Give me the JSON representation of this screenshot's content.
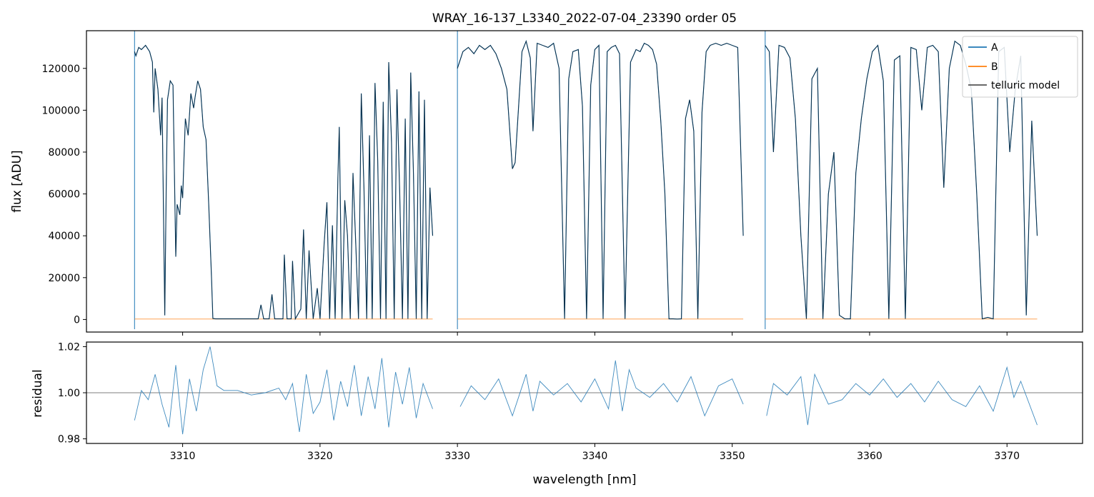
{
  "chart_data": [
    {
      "type": "line",
      "panel": "main",
      "title": "WRAY_16-137_L3340_2022-07-04_23390  order 05",
      "xlabel": "",
      "ylabel": "flux [ADU]",
      "xlim": [
        3303.0,
        3375.5
      ],
      "ylim": [
        -6000,
        138000
      ],
      "yticks": [
        0,
        20000,
        40000,
        60000,
        80000,
        100000,
        120000
      ],
      "ytick_labels": [
        "0",
        "20000",
        "40000",
        "60000",
        "80000",
        "100000",
        "120000"
      ],
      "xticks": [
        3310,
        3320,
        3330,
        3340,
        3350,
        3360,
        3370
      ],
      "legend": {
        "placement": "top-right",
        "entries": [
          "A",
          "B",
          "telluric model"
        ]
      },
      "chip_edges": [
        3306.5,
        3330.0,
        3352.4
      ],
      "series": [
        {
          "name": "A",
          "color": "#1f77b4",
          "segments": [
            {
              "x": [
                3306.5,
                3306.6,
                3306.8,
                3307.0,
                3307.3,
                3307.6,
                3307.8,
                3307.9,
                3308.0,
                3308.2,
                3308.4,
                3308.5,
                3308.7,
                3308.8,
                3308.9,
                3309.1,
                3309.3,
                3309.5,
                3309.6,
                3309.8,
                3309.9,
                3310.0,
                3310.2,
                3310.4,
                3310.6,
                3310.8,
                3310.9,
                3311.1,
                3311.3,
                3311.5,
                3311.7,
                3311.9,
                3312.1,
                3312.2,
                3312.4,
                3312.6,
                3313.0,
                3313.5,
                3314.0,
                3314.5,
                3315.0,
                3315.5,
                3315.7,
                3315.9,
                3316.3,
                3316.5,
                3316.7,
                3317.0,
                3317.3,
                3317.4,
                3317.6,
                3317.9,
                3318.0,
                3318.2,
                3318.6,
                3318.8,
                3319.0,
                3319.2,
                3319.5,
                3319.8,
                3320.0,
                3320.3,
                3320.5,
                3320.7,
                3320.9,
                3321.1,
                3321.3,
                3321.4,
                3321.6,
                3321.8,
                3322.0,
                3322.2,
                3322.4,
                3322.6,
                3322.8,
                3323.0,
                3323.2,
                3323.4,
                3323.6,
                3323.8,
                3324.0,
                3324.2,
                3324.4,
                3324.6,
                3324.8,
                3325.0,
                3325.2,
                3325.4,
                3325.6,
                3325.8,
                3326.0,
                3326.2,
                3326.4,
                3326.6,
                3326.8,
                3327.0,
                3327.2,
                3327.4,
                3327.6,
                3327.8,
                3328.0,
                3328.2
              ],
              "y": [
                128000,
                126000,
                130000,
                129000,
                131000,
                128000,
                123000,
                99000,
                120000,
                110000,
                88000,
                106000,
                2000,
                60000,
                105000,
                114000,
                112000,
                30000,
                55000,
                50000,
                64000,
                58000,
                96000,
                88000,
                108000,
                101000,
                106000,
                114000,
                110000,
                92000,
                86000,
                55000,
                20000,
                500,
                300,
                300,
                300,
                300,
                300,
                300,
                300,
                300,
                7000,
                300,
                300,
                12000,
                300,
                300,
                300,
                31000,
                300,
                300,
                28000,
                300,
                5000,
                43000,
                300,
                33000,
                300,
                15000,
                300,
                36000,
                56000,
                300,
                45000,
                300,
                68000,
                92000,
                300,
                57000,
                40000,
                300,
                70000,
                36000,
                300,
                108000,
                62000,
                300,
                88000,
                300,
                113000,
                76000,
                300,
                104000,
                300,
                123000,
                85000,
                300,
                110000,
                60000,
                300,
                96000,
                300,
                118000,
                70000,
                300,
                109000,
                300,
                105000,
                300,
                63000,
                40000
              ]
            },
            {
              "x": [
                3330.0,
                3330.4,
                3330.8,
                3331.2,
                3331.6,
                3332.0,
                3332.4,
                3332.8,
                3333.2,
                3333.6,
                3334.0,
                3334.2,
                3334.4,
                3334.7,
                3335.0,
                3335.3,
                3335.5,
                3335.8,
                3336.2,
                3336.6,
                3337.0,
                3337.4,
                3337.8,
                3338.1,
                3338.4,
                3338.8,
                3339.1,
                3339.4,
                3339.7,
                3340.0,
                3340.3,
                3340.6,
                3340.9,
                3341.2,
                3341.5,
                3341.8,
                3342.2,
                3342.6,
                3343.0,
                3343.3,
                3343.6,
                3343.9,
                3344.2,
                3344.5,
                3344.8,
                3345.1,
                3345.4,
                3345.7,
                3346.0,
                3346.3,
                3346.6,
                3346.9,
                3347.2,
                3347.5,
                3347.8,
                3348.1,
                3348.4,
                3348.8,
                3349.2,
                3349.6,
                3350.0,
                3350.4,
                3350.8
              ],
              "y": [
                120000,
                128000,
                130000,
                127000,
                131000,
                129000,
                131000,
                127000,
                120000,
                110000,
                72000,
                75000,
                96000,
                128000,
                133000,
                125000,
                90000,
                132000,
                131000,
                130000,
                132000,
                120000,
                300,
                115000,
                128000,
                129000,
                102000,
                300,
                112000,
                129000,
                131000,
                300,
                128000,
                130000,
                131000,
                127000,
                300,
                123000,
                129000,
                128000,
                132000,
                131000,
                129000,
                122000,
                95000,
                60000,
                300,
                300,
                200,
                300,
                96000,
                105000,
                90000,
                300,
                99000,
                128000,
                131000,
                132000,
                131000,
                132000,
                131000,
                130000,
                40000
              ]
            },
            {
              "x": [
                3352.4,
                3352.7,
                3353.0,
                3353.4,
                3353.8,
                3354.2,
                3354.6,
                3355.0,
                3355.4,
                3355.8,
                3356.2,
                3356.6,
                3357.0,
                3357.4,
                3357.8,
                3358.2,
                3358.6,
                3359.0,
                3359.4,
                3359.8,
                3360.2,
                3360.6,
                3361.0,
                3361.4,
                3361.8,
                3362.2,
                3362.6,
                3363.0,
                3363.4,
                3363.8,
                3364.2,
                3364.6,
                3365.0,
                3365.4,
                3365.8,
                3366.2,
                3366.6,
                3367.0,
                3367.4,
                3367.8,
                3368.2,
                3368.6,
                3369.0,
                3369.4,
                3369.8,
                3370.2,
                3370.6,
                3371.0,
                3371.4,
                3371.8,
                3372.2
              ],
              "y": [
                131000,
                128000,
                80000,
                131000,
                130000,
                125000,
                96000,
                40000,
                300,
                115000,
                120000,
                300,
                60000,
                80000,
                2000,
                300,
                300,
                70000,
                96000,
                115000,
                128000,
                131000,
                114000,
                300,
                124000,
                126000,
                300,
                130000,
                129000,
                100000,
                130000,
                131000,
                128000,
                63000,
                120000,
                133000,
                131000,
                122000,
                110000,
                60000,
                300,
                1000,
                300,
                128000,
                130000,
                80000,
                110000,
                126000,
                2000,
                95000,
                40000
              ]
            }
          ]
        },
        {
          "name": "B",
          "color": "#ff7f0e",
          "segments": [
            {
              "x": [
                3306.5,
                3328.2
              ],
              "y": [
                200,
                200
              ]
            },
            {
              "x": [
                3330.0,
                3350.8
              ],
              "y": [
                200,
                200
              ]
            },
            {
              "x": [
                3352.4,
                3372.2
              ],
              "y": [
                200,
                200
              ]
            }
          ]
        },
        {
          "name": "telluric model",
          "color": "#000000",
          "same_as": "A"
        }
      ]
    },
    {
      "type": "line",
      "panel": "residual",
      "xlabel": "wavelength [nm]",
      "ylabel": "residual",
      "xlim": [
        3303.0,
        3375.5
      ],
      "ylim": [
        0.978,
        1.022
      ],
      "yticks": [
        0.98,
        1.0,
        1.02
      ],
      "ytick_labels": [
        "0.98",
        "1.00",
        "1.02"
      ],
      "xticks": [
        3310,
        3320,
        3330,
        3340,
        3350,
        3360,
        3370
      ],
      "xtick_labels": [
        "3310",
        "3320",
        "3330",
        "3340",
        "3350",
        "3360",
        "3370"
      ],
      "hline": 1.0,
      "series": [
        {
          "name": "residual",
          "color": "#1f77b4",
          "segments": [
            {
              "x": [
                3306.5,
                3307.0,
                3307.5,
                3308.0,
                3308.5,
                3309.0,
                3309.5,
                3310.0,
                3310.5,
                3311.0,
                3311.5,
                3312.0,
                3312.5,
                3313.0,
                3314.0,
                3315.0,
                3316.0,
                3317.0,
                3317.5,
                3318.0,
                3318.5,
                3319.0,
                3319.5,
                3320.0,
                3320.5,
                3321.0,
                3321.5,
                3322.0,
                3322.5,
                3323.0,
                3323.5,
                3324.0,
                3324.5,
                3325.0,
                3325.5,
                3326.0,
                3326.5,
                3327.0,
                3327.5,
                3328.2
              ],
              "y": [
                0.988,
                1.001,
                0.997,
                1.008,
                0.995,
                0.985,
                1.012,
                0.982,
                1.006,
                0.992,
                1.01,
                1.02,
                1.003,
                1.001,
                1.001,
                0.999,
                1.0,
                1.002,
                0.997,
                1.004,
                0.983,
                1.008,
                0.991,
                0.996,
                1.01,
                0.988,
                1.005,
                0.994,
                1.012,
                0.99,
                1.007,
                0.993,
                1.015,
                0.985,
                1.009,
                0.995,
                1.011,
                0.989,
                1.004,
                0.993
              ]
            },
            {
              "x": [
                3330.2,
                3331.0,
                3332.0,
                3333.0,
                3334.0,
                3335.0,
                3335.5,
                3336.0,
                3337.0,
                3338.0,
                3339.0,
                3340.0,
                3341.0,
                3341.5,
                3342.0,
                3342.5,
                3343.0,
                3344.0,
                3345.0,
                3346.0,
                3347.0,
                3348.0,
                3349.0,
                3350.0,
                3350.8
              ],
              "y": [
                0.994,
                1.003,
                0.997,
                1.006,
                0.99,
                1.008,
                0.992,
                1.005,
                0.999,
                1.004,
                0.996,
                1.006,
                0.993,
                1.014,
                0.992,
                1.01,
                1.002,
                0.998,
                1.004,
                0.996,
                1.007,
                0.99,
                1.003,
                1.006,
                0.995
              ]
            },
            {
              "x": [
                3352.5,
                3353.0,
                3354.0,
                3355.0,
                3355.5,
                3356.0,
                3357.0,
                3358.0,
                3359.0,
                3360.0,
                3361.0,
                3362.0,
                3363.0,
                3364.0,
                3365.0,
                3366.0,
                3367.0,
                3368.0,
                3369.0,
                3370.0,
                3370.5,
                3371.0,
                3372.2
              ],
              "y": [
                0.99,
                1.004,
                0.999,
                1.007,
                0.986,
                1.008,
                0.995,
                0.997,
                1.004,
                0.999,
                1.006,
                0.998,
                1.004,
                0.996,
                1.005,
                0.997,
                0.994,
                1.003,
                0.992,
                1.011,
                0.998,
                1.005,
                0.986
              ]
            }
          ]
        }
      ]
    }
  ]
}
